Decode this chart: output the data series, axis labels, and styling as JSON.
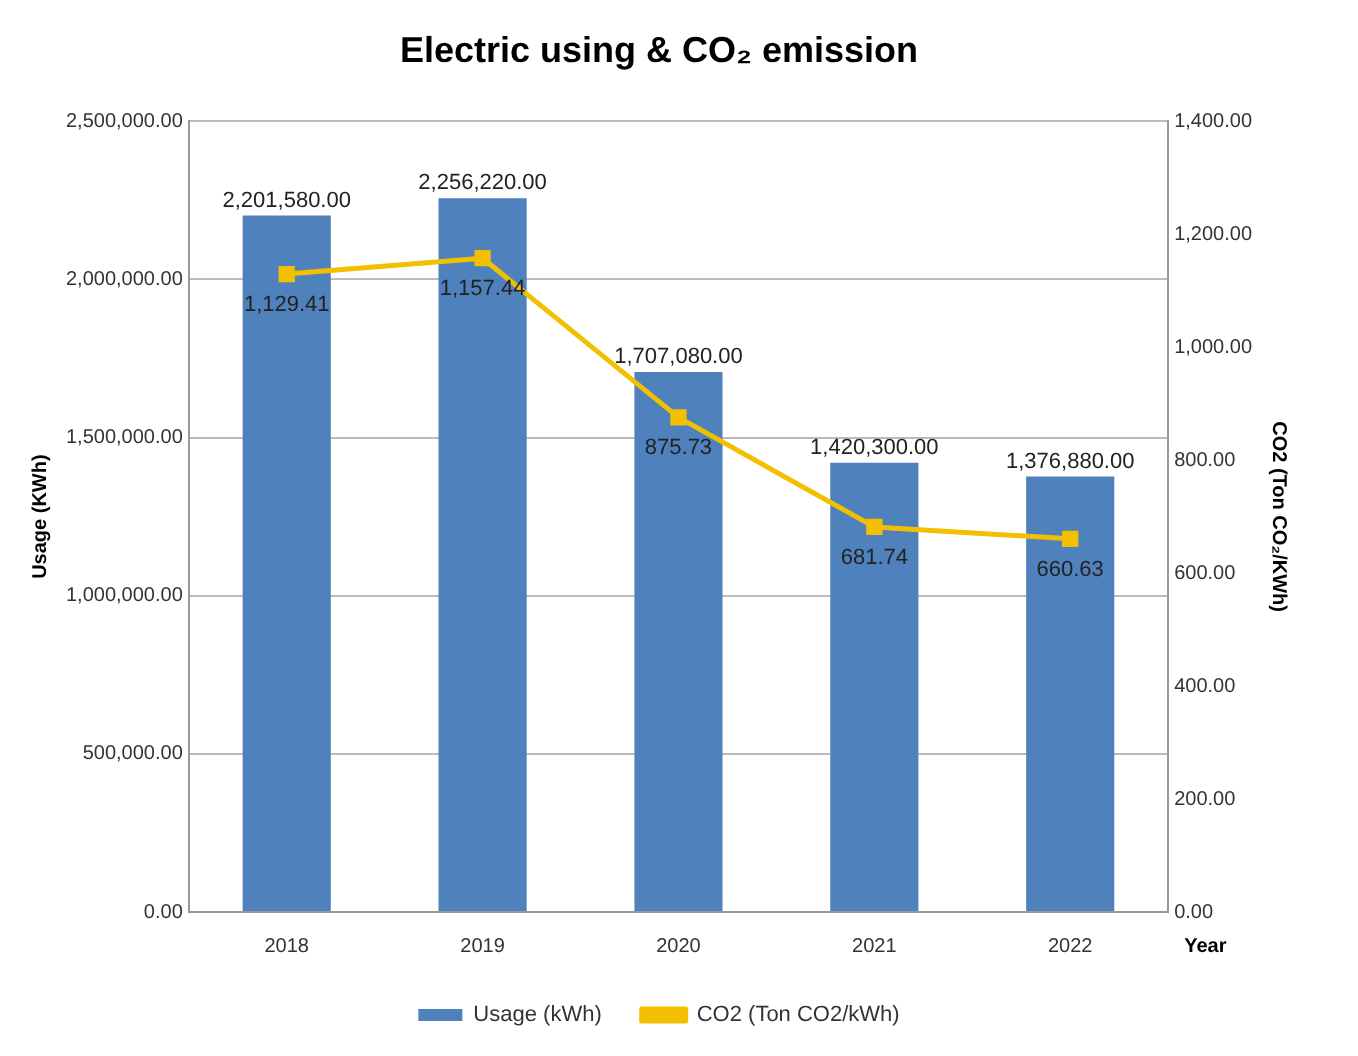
{
  "chart_data": {
    "type": "bar",
    "title": "Electric using & CO₂ emission",
    "categories": [
      "2018",
      "2019",
      "2020",
      "2021",
      "2022"
    ],
    "xlabel": "Year",
    "ylabel": "Usage (KWh)",
    "y2label": "CO2 (Ton CO₂/KWh)",
    "series": [
      {
        "name": "Usage (kWh)",
        "color": "#4f81bd",
        "values": [
          2201580,
          2256220,
          1707080,
          1420300,
          1376880
        ],
        "value_labels": [
          "2,201,580.00",
          "2,256,220.00",
          "1,707,080.00",
          "1,420,300.00",
          "1,376,880.00"
        ]
      },
      {
        "name": "CO2 (Ton CO2/kWh)",
        "type": "line",
        "axis": "y2",
        "color": "#f2c000",
        "marker": "square",
        "line_style": "solid",
        "values": [
          1129.41,
          1157.44,
          875.73,
          681.74,
          660.63
        ],
        "value_labels": [
          "1,129.41",
          "1,157.44",
          "875.73",
          "681.74",
          "660.63"
        ]
      }
    ],
    "ylim": [
      0,
      2500000
    ],
    "yticks": [
      {
        "value": 0,
        "label": "0.00"
      },
      {
        "value": 500000,
        "label": "500,000.00"
      },
      {
        "value": 1000000,
        "label": "1,000,000.00"
      },
      {
        "value": 1500000,
        "label": "1,500,000.00"
      },
      {
        "value": 2000000,
        "label": "2,000,000.00"
      },
      {
        "value": 2500000,
        "label": "2,500,000.00"
      }
    ],
    "y2lim": [
      0,
      1400
    ],
    "y2ticks": [
      {
        "value": 0,
        "label": "0.00"
      },
      {
        "value": 200,
        "label": "200.00"
      },
      {
        "value": 400,
        "label": "400.00"
      },
      {
        "value": 600,
        "label": "600.00"
      },
      {
        "value": 800,
        "label": "800.00"
      },
      {
        "value": 1000,
        "label": "1,000.00"
      },
      {
        "value": 1200,
        "label": "1,200.00"
      },
      {
        "value": 1400,
        "label": "1,400.00"
      }
    ],
    "grid": "y",
    "legend": "bottom"
  }
}
